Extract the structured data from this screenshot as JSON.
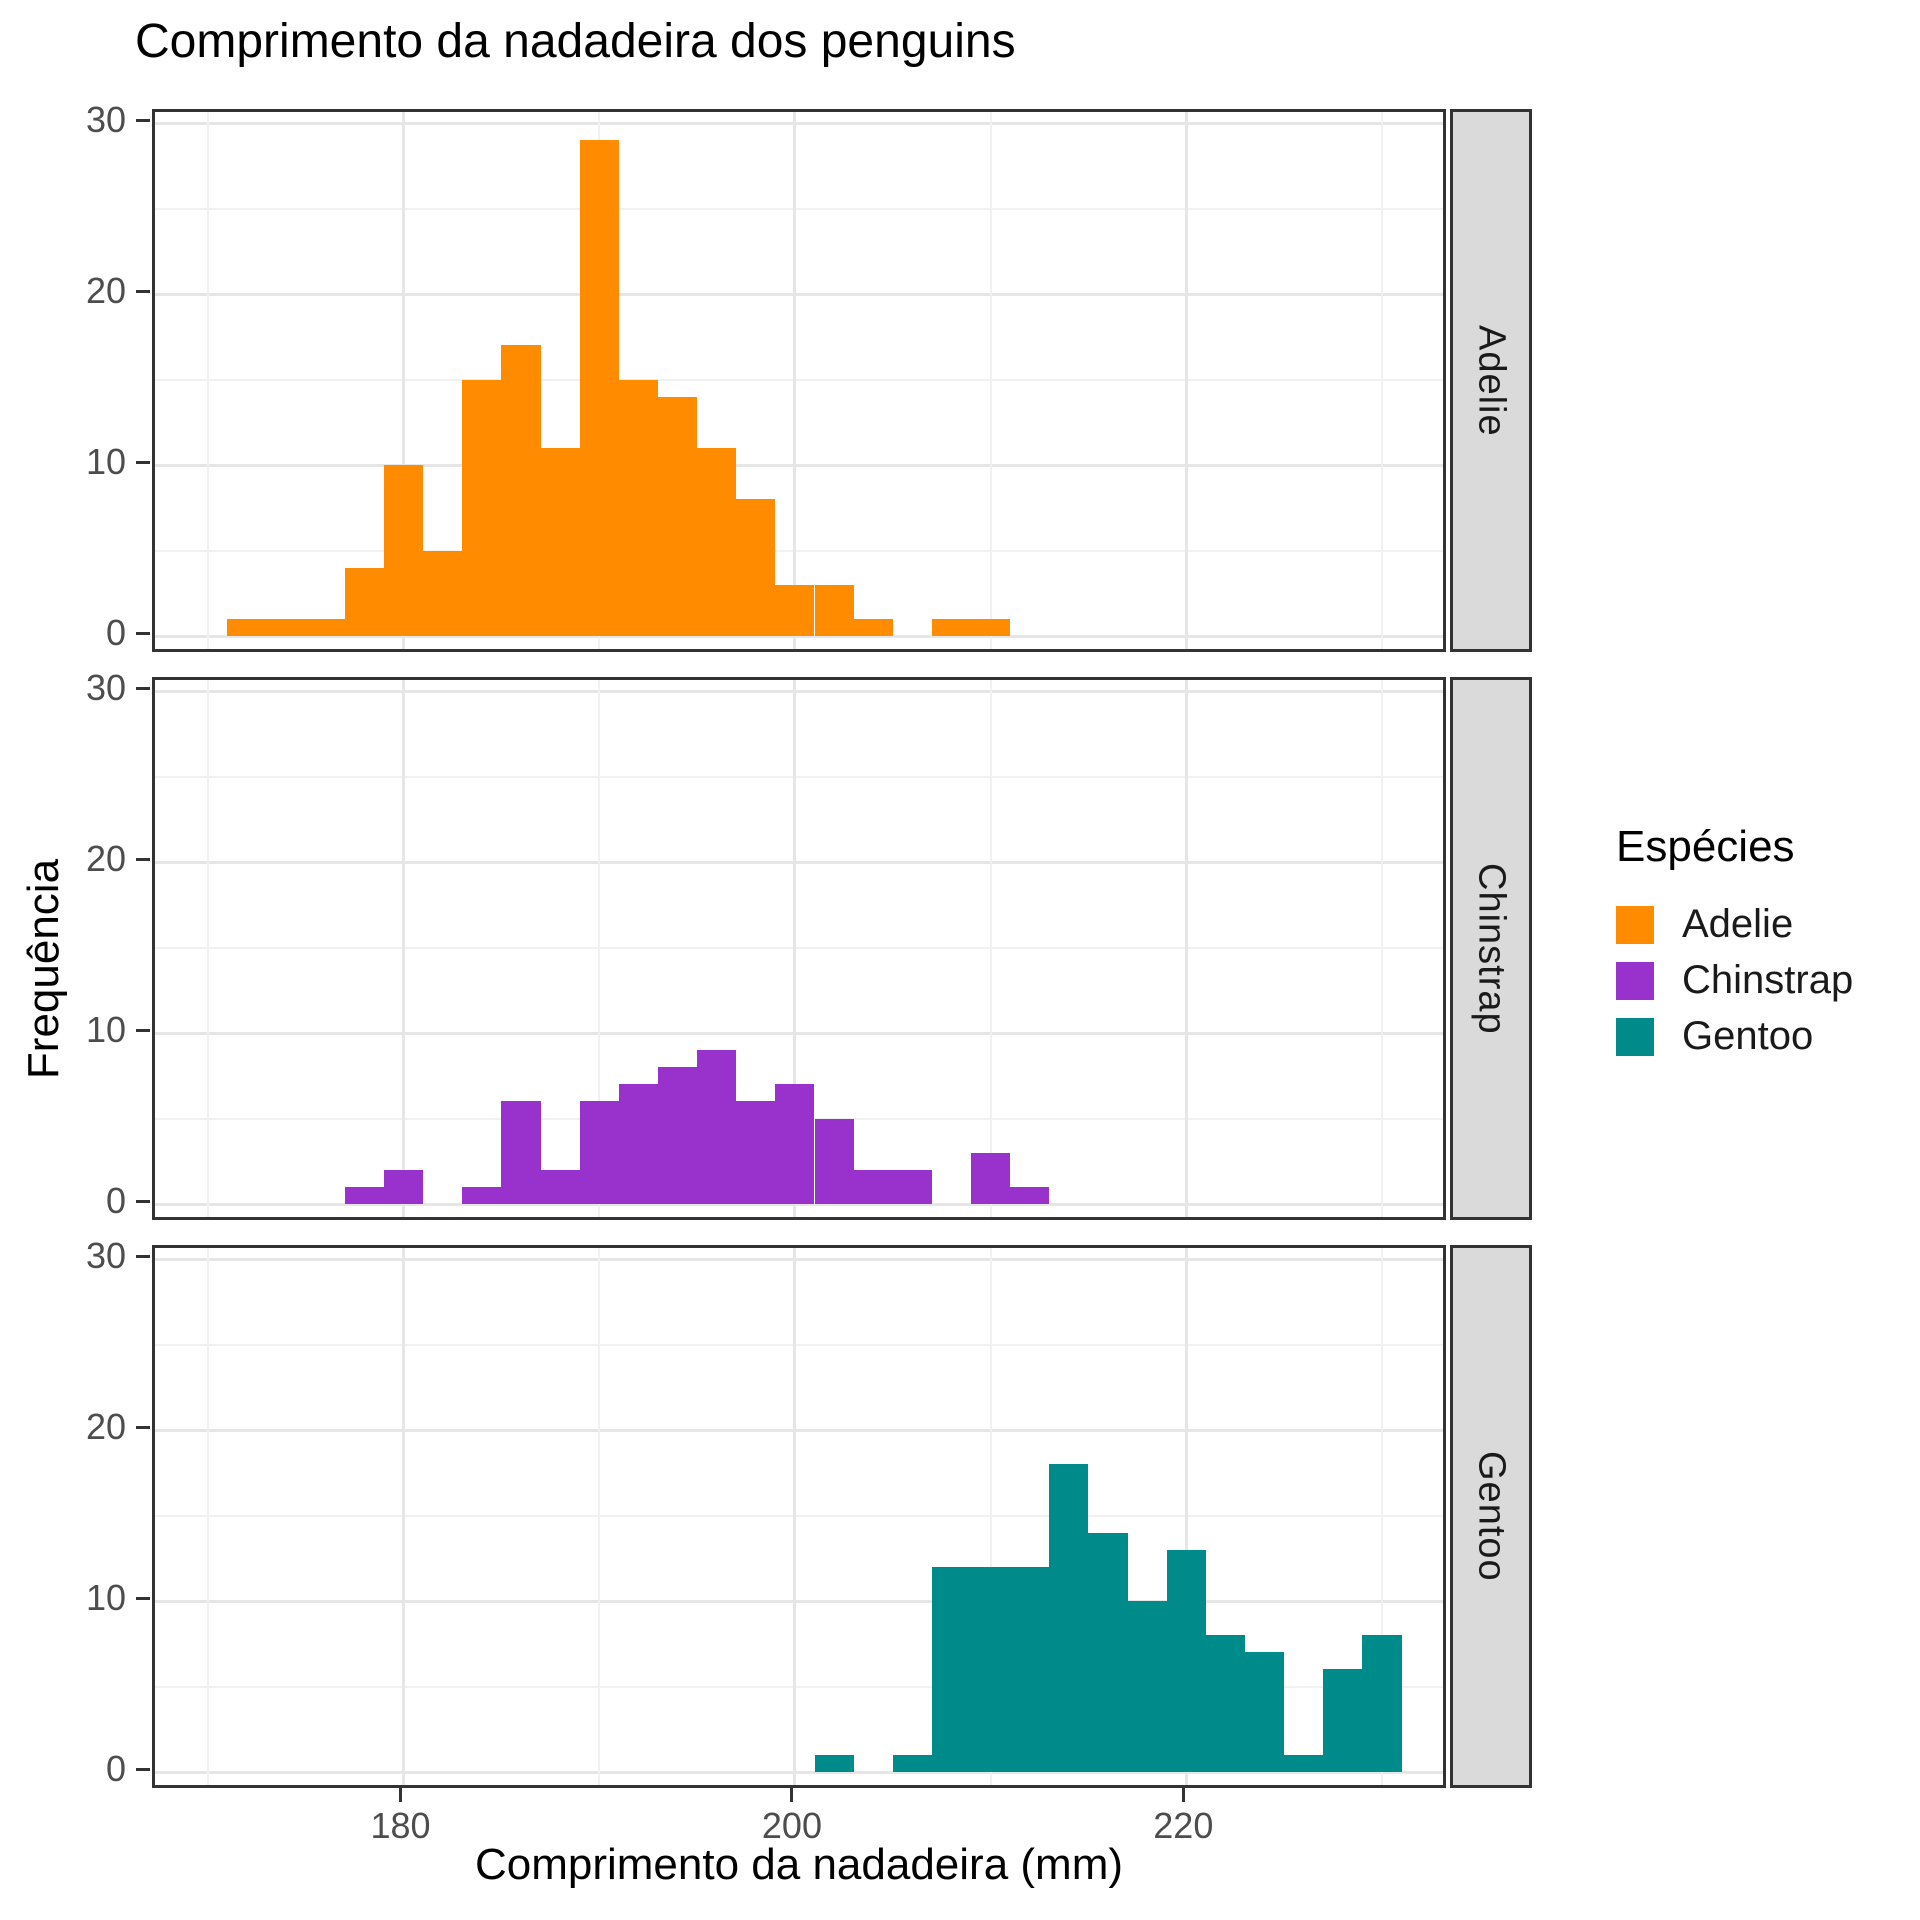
{
  "chart_data": {
    "type": "histogram",
    "title": "Comprimento da nadadeira dos penguins",
    "xlabel": "Comprimento da nadadeira (mm)",
    "ylabel": "Frequência",
    "bin_width_mm": 2,
    "x_axis": {
      "range_mm": [
        167.3,
        233.5
      ],
      "ticks": [
        180,
        200,
        220
      ],
      "minor_gridlines_mm": [
        170,
        190,
        210,
        230
      ]
    },
    "y_axis": {
      "range": [
        0,
        30
      ],
      "ticks": [
        0,
        10,
        20,
        30
      ],
      "minor_gridlines": [
        5,
        15,
        25
      ]
    },
    "grid": true,
    "facets": [
      {
        "species": "Adelie",
        "color": "#FF8C00",
        "first_bin_left_mm": 171,
        "counts": [
          1,
          1,
          1,
          4,
          10,
          5,
          15,
          17,
          11,
          29,
          15,
          14,
          11,
          8,
          3,
          3,
          1,
          0,
          1,
          1
        ]
      },
      {
        "species": "Chinstrap",
        "color": "#9932CC",
        "first_bin_left_mm": 177,
        "counts": [
          1,
          2,
          0,
          1,
          6,
          2,
          6,
          7,
          8,
          9,
          6,
          7,
          5,
          2,
          2,
          0,
          3,
          1
        ]
      },
      {
        "species": "Gentoo",
        "color": "#008B8B",
        "first_bin_left_mm": 201,
        "counts": [
          1,
          0,
          1,
          12,
          12,
          12,
          18,
          14,
          10,
          13,
          8,
          7,
          1,
          6,
          8
        ]
      }
    ],
    "legend": {
      "title": "Espécies",
      "position": "right",
      "entries": [
        {
          "label": "Adelie",
          "color": "#FF8C00"
        },
        {
          "label": "Chinstrap",
          "color": "#9932CC"
        },
        {
          "label": "Gentoo",
          "color": "#008B8B"
        }
      ]
    }
  }
}
